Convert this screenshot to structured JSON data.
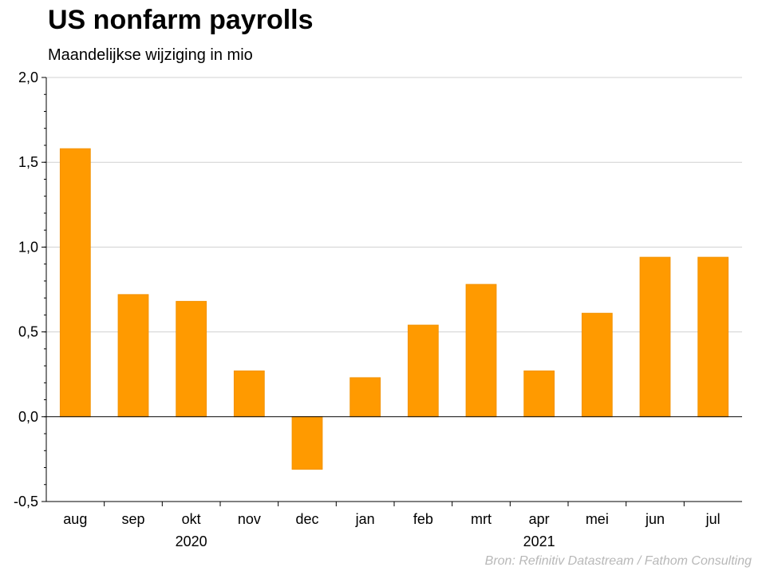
{
  "header": {
    "title": "US nonfarm payrolls",
    "subtitle": "Maandelijkse wijziging in mio"
  },
  "footer": {
    "source": "Bron: Refinitiv Datastream / Fathom Consulting"
  },
  "chart_data": {
    "type": "bar",
    "categories": [
      "aug",
      "sep",
      "okt",
      "nov",
      "dec",
      "jan",
      "feb",
      "mrt",
      "apr",
      "mei",
      "jun",
      "jul"
    ],
    "values": [
      1.58,
      0.72,
      0.68,
      0.27,
      -0.31,
      0.23,
      0.54,
      0.78,
      0.27,
      0.61,
      0.94,
      0.94
    ],
    "year_groups": [
      {
        "label": "2020",
        "from": 0,
        "to": 4
      },
      {
        "label": "2021",
        "from": 5,
        "to": 11
      }
    ],
    "ylim": [
      -0.5,
      2.0
    ],
    "yticks": [
      -0.5,
      0.0,
      0.5,
      1.0,
      1.5,
      2.0
    ],
    "ytick_labels": [
      "-0,5",
      "0,0",
      "0,5",
      "1,0",
      "1,5",
      "2,0"
    ],
    "grid": true,
    "bar_color": "#ff9a00",
    "xlabel": "",
    "ylabel": ""
  }
}
